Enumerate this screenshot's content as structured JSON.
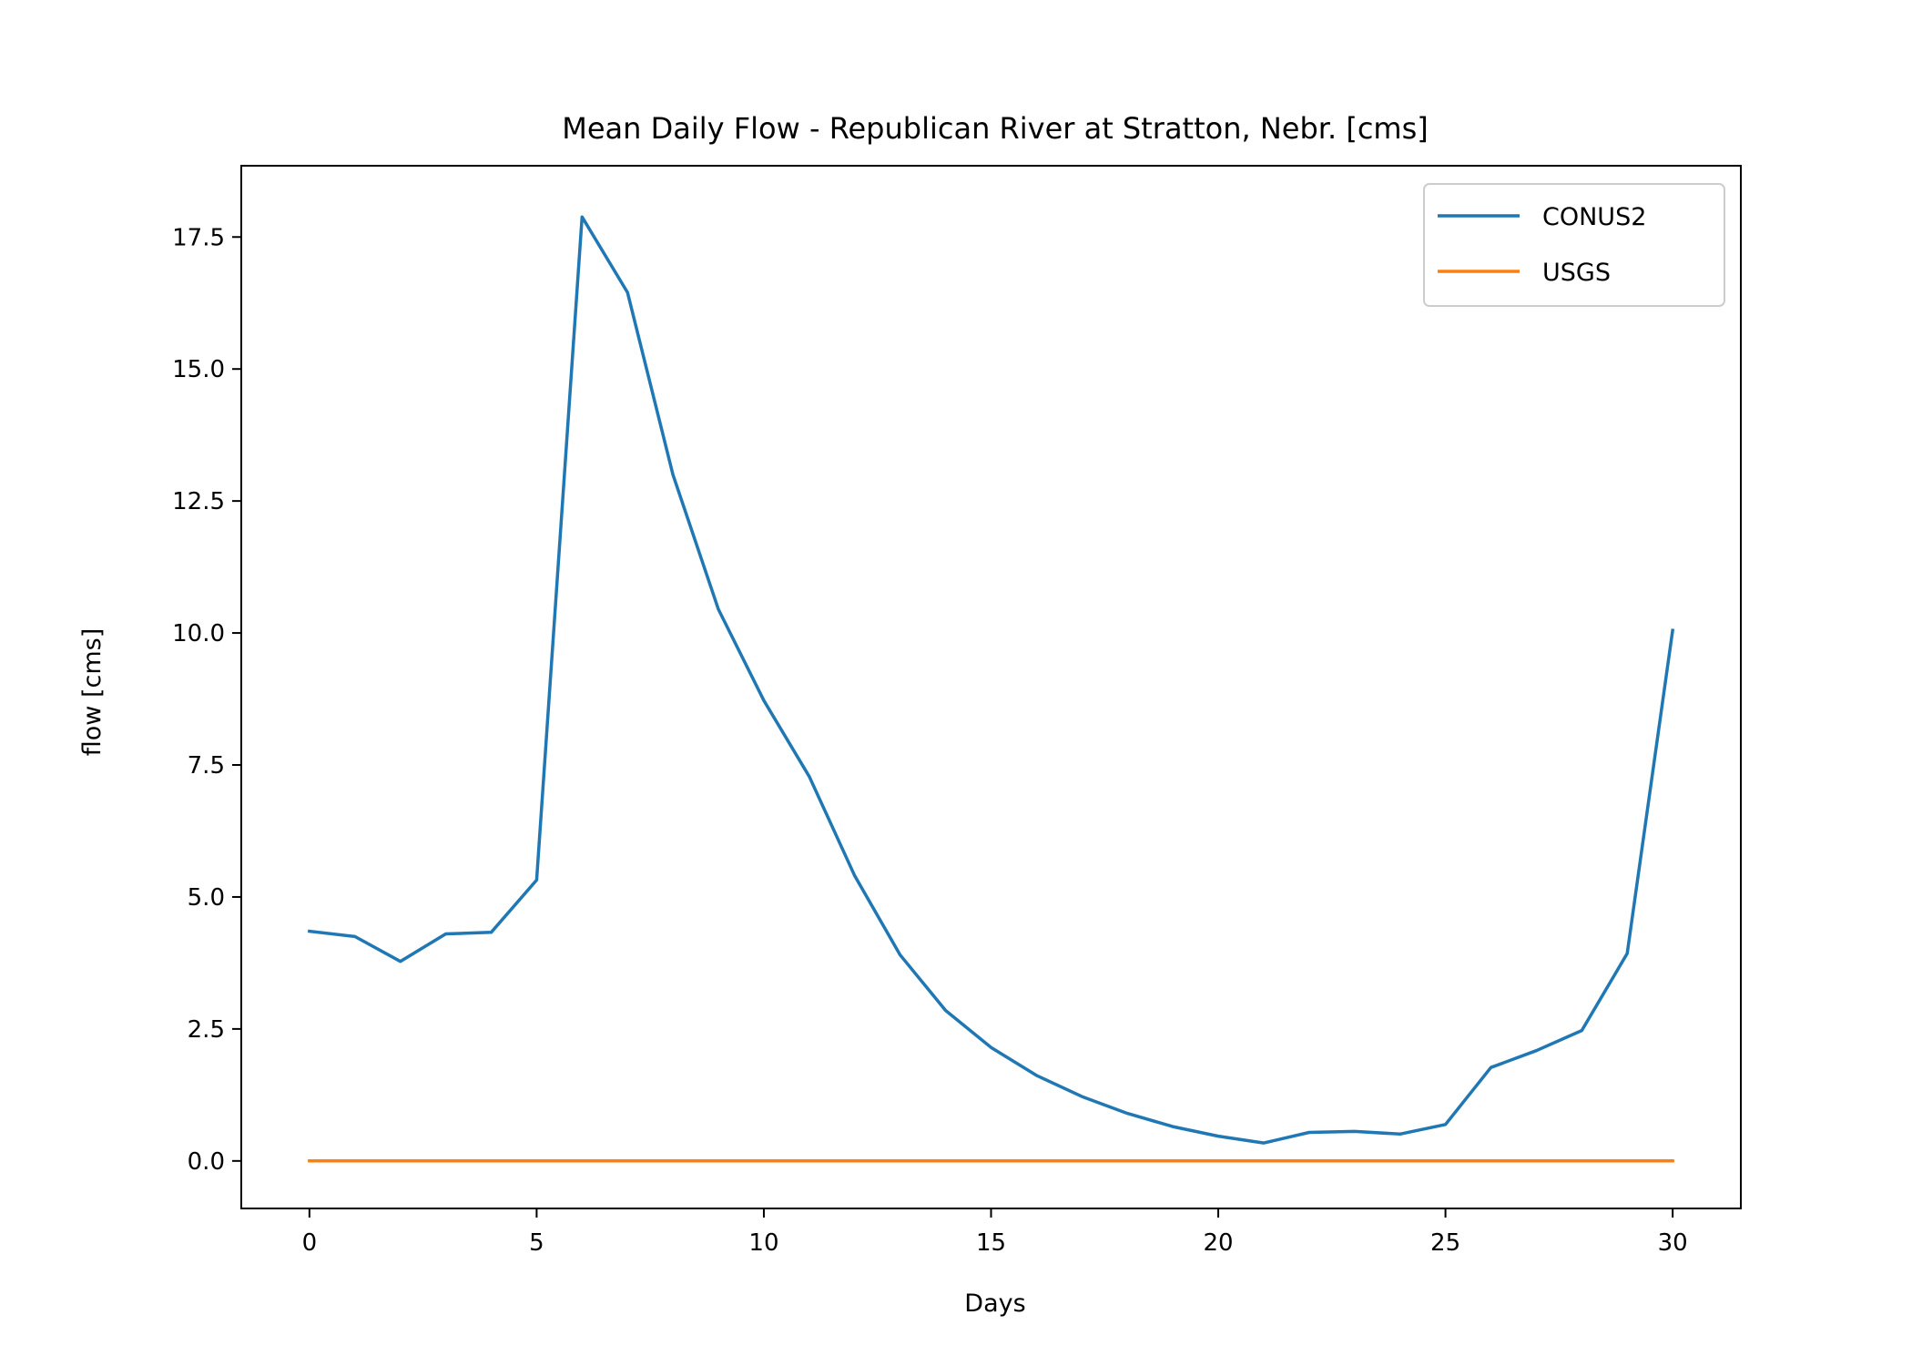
{
  "chart_data": {
    "type": "line",
    "title": "Mean Daily Flow - Republican River at Stratton, Nebr. [cms]",
    "xlabel": "Days",
    "ylabel": "flow [cms]",
    "xlim": [
      -1.5,
      31.5
    ],
    "ylim": [
      -0.9,
      18.85
    ],
    "xticks": [
      0,
      5,
      10,
      15,
      20,
      25,
      30
    ],
    "xtick_labels": [
      "0",
      "5",
      "10",
      "15",
      "20",
      "25",
      "30"
    ],
    "yticks": [
      0.0,
      2.5,
      5.0,
      7.5,
      10.0,
      12.5,
      15.0,
      17.5
    ],
    "ytick_labels": [
      "0.0",
      "2.5",
      "5.0",
      "7.5",
      "10.0",
      "12.5",
      "15.0",
      "17.5"
    ],
    "grid": false,
    "legend_position": "top-right",
    "x": [
      0,
      1,
      2,
      3,
      4,
      5,
      6,
      7,
      8,
      9,
      10,
      11,
      12,
      13,
      14,
      15,
      16,
      17,
      18,
      19,
      20,
      21,
      22,
      23,
      24,
      25,
      26,
      27,
      28,
      29,
      30
    ],
    "series": [
      {
        "name": "CONUS2",
        "color": "#1f77b4",
        "values": [
          4.35,
          4.25,
          3.78,
          4.3,
          4.33,
          5.32,
          17.88,
          16.45,
          13.0,
          10.45,
          8.72,
          7.28,
          5.4,
          3.9,
          2.85,
          2.15,
          1.62,
          1.22,
          0.9,
          0.65,
          0.47,
          0.34,
          0.54,
          0.56,
          0.51,
          0.69,
          1.77,
          2.09,
          2.47,
          3.93,
          10.05
        ]
      },
      {
        "name": "USGS",
        "color": "#ff7f0e",
        "values": [
          0,
          0,
          0,
          0,
          0,
          0,
          0,
          0,
          0,
          0,
          0,
          0,
          0,
          0,
          0,
          0,
          0,
          0,
          0,
          0,
          0,
          0,
          0,
          0,
          0,
          0,
          0,
          0,
          0,
          0,
          0
        ]
      }
    ]
  }
}
